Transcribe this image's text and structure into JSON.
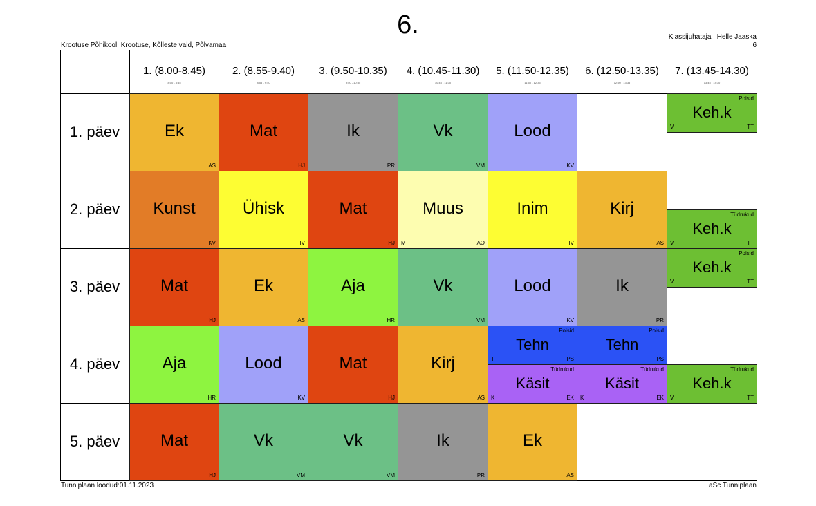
{
  "title": "6.",
  "school": "Krootuse Põhikool, Krootuse, Kõlleste vald, Põlvamaa",
  "class_teacher": "Klassijuhataja : Helle Jaaska",
  "class_number": "6",
  "created": "Tunniplaan loodud:01.11.2023",
  "brand": "aSc Tunniplaan",
  "periods": [
    {
      "label": "1. (8.00-8.45)",
      "time": "8:00 - 8:45"
    },
    {
      "label": "2. (8.55-9.40)",
      "time": "8:55 - 9:40"
    },
    {
      "label": "3. (9.50-10.35)",
      "time": "9:50 - 10:35"
    },
    {
      "label": "4. (10.45-11.30)",
      "time": "10:45 - 11:30"
    },
    {
      "label": "5. (11.50-12.35)",
      "time": "11:50 - 12:35"
    },
    {
      "label": "6. (12.50-13.35)",
      "time": "12:50 - 13:35"
    },
    {
      "label": "7. (13.45-14.30)",
      "time": "13:45 - 14:30"
    }
  ],
  "days": [
    "1. päev",
    "2. päev",
    "3. päev",
    "4. päev",
    "5. päev"
  ],
  "colors": {
    "orange_yellow": "#efb631",
    "red": "#df4511",
    "gray": "#959595",
    "green_teal": "#6cc086",
    "lavender": "#a0a1f9",
    "bright_green": "#6dbf33",
    "dark_orange": "#e27c27",
    "yellow": "#fdfd33",
    "light_yellow": "#fdfdb0",
    "lime": "#8ef440",
    "blue": "#2b52f5",
    "purple": "#a962f5"
  },
  "lessons": [
    {
      "day": 0,
      "period": 0,
      "subject": "Ek",
      "teacher": "AS",
      "color": "#efb631"
    },
    {
      "day": 0,
      "period": 1,
      "subject": "Mat",
      "teacher": "HJ",
      "color": "#df4511"
    },
    {
      "day": 0,
      "period": 2,
      "subject": "Ik",
      "teacher": "PR",
      "color": "#959595"
    },
    {
      "day": 0,
      "period": 3,
      "subject": "Vk",
      "teacher": "VM",
      "color": "#6cc086"
    },
    {
      "day": 0,
      "period": 4,
      "subject": "Lood",
      "teacher": "KV",
      "color": "#a0a1f9"
    },
    {
      "day": 0,
      "period": 6,
      "part": "top",
      "subject": "Keh.k",
      "teacher": "TT",
      "room": "V",
      "group": "Poisid",
      "color": "#6dbf33"
    },
    {
      "day": 1,
      "period": 0,
      "subject": "Kunst",
      "teacher": "KV",
      "color": "#e27c27"
    },
    {
      "day": 1,
      "period": 1,
      "subject": "Ühisk",
      "teacher": "IV",
      "color": "#fdfd33"
    },
    {
      "day": 1,
      "period": 2,
      "subject": "Mat",
      "teacher": "HJ",
      "color": "#df4511"
    },
    {
      "day": 1,
      "period": 3,
      "subject": "Muus",
      "teacher": "AO",
      "room": "M",
      "color": "#fdfdb0"
    },
    {
      "day": 1,
      "period": 4,
      "subject": "Inim",
      "teacher": "IV",
      "color": "#fdfd33"
    },
    {
      "day": 1,
      "period": 5,
      "subject": "Kirj",
      "teacher": "AS",
      "color": "#efb631"
    },
    {
      "day": 1,
      "period": 6,
      "part": "bottom",
      "subject": "Keh.k",
      "teacher": "TT",
      "room": "V",
      "group": "Tüdrukud",
      "color": "#6dbf33"
    },
    {
      "day": 2,
      "period": 0,
      "subject": "Mat",
      "teacher": "HJ",
      "color": "#df4511"
    },
    {
      "day": 2,
      "period": 1,
      "subject": "Ek",
      "teacher": "AS",
      "color": "#efb631"
    },
    {
      "day": 2,
      "period": 2,
      "subject": "Aja",
      "teacher": "HR",
      "color": "#8ef440"
    },
    {
      "day": 2,
      "period": 3,
      "subject": "Vk",
      "teacher": "VM",
      "color": "#6cc086"
    },
    {
      "day": 2,
      "period": 4,
      "subject": "Lood",
      "teacher": "KV",
      "color": "#a0a1f9"
    },
    {
      "day": 2,
      "period": 5,
      "subject": "Ik",
      "teacher": "PR",
      "color": "#959595"
    },
    {
      "day": 2,
      "period": 6,
      "part": "top",
      "subject": "Keh.k",
      "teacher": "TT",
      "room": "V",
      "group": "Poisid",
      "color": "#6dbf33"
    },
    {
      "day": 3,
      "period": 0,
      "subject": "Aja",
      "teacher": "HR",
      "color": "#8ef440"
    },
    {
      "day": 3,
      "period": 1,
      "subject": "Lood",
      "teacher": "KV",
      "color": "#a0a1f9"
    },
    {
      "day": 3,
      "period": 2,
      "subject": "Mat",
      "teacher": "HJ",
      "color": "#df4511"
    },
    {
      "day": 3,
      "period": 3,
      "subject": "Kirj",
      "teacher": "AS",
      "color": "#efb631"
    },
    {
      "day": 3,
      "period": 4,
      "part": "top",
      "subject": "Tehn",
      "teacher": "PS",
      "room": "T",
      "group": "Poisid",
      "color": "#2b52f5"
    },
    {
      "day": 3,
      "period": 4,
      "part": "bottom",
      "subject": "Käsit",
      "teacher": "EK",
      "room": "K",
      "group": "Tüdrukud",
      "color": "#a962f5"
    },
    {
      "day": 3,
      "period": 5,
      "part": "top",
      "subject": "Tehn",
      "teacher": "PS",
      "room": "T",
      "group": "Poisid",
      "color": "#2b52f5"
    },
    {
      "day": 3,
      "period": 5,
      "part": "bottom",
      "subject": "Käsit",
      "teacher": "EK",
      "room": "K",
      "group": "Tüdrukud",
      "color": "#a962f5"
    },
    {
      "day": 3,
      "period": 6,
      "part": "bottom",
      "subject": "Keh.k",
      "teacher": "TT",
      "room": "V",
      "group": "Tüdrukud",
      "color": "#6dbf33"
    },
    {
      "day": 4,
      "period": 0,
      "subject": "Mat",
      "teacher": "HJ",
      "color": "#df4511"
    },
    {
      "day": 4,
      "period": 1,
      "subject": "Vk",
      "teacher": "VM",
      "color": "#6cc086"
    },
    {
      "day": 4,
      "period": 2,
      "subject": "Vk",
      "teacher": "VM",
      "color": "#6cc086"
    },
    {
      "day": 4,
      "period": 3,
      "subject": "Ik",
      "teacher": "PR",
      "color": "#959595"
    },
    {
      "day": 4,
      "period": 4,
      "subject": "Ek",
      "teacher": "AS",
      "color": "#efb631"
    }
  ]
}
